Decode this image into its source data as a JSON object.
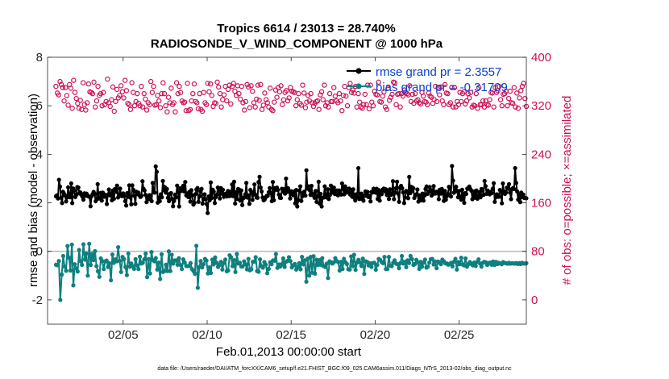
{
  "chart_data": {
    "type": "line",
    "title": "Tropics 6614 / 23013 = 28.740%",
    "subtitle": "RADIOSONDE_V_WIND_COMPONENT @ 1000 hPa",
    "xlabel": "Feb.01,2013 00:00:00 start",
    "ylabel_left": "rmse and bias (model - observation)",
    "ylabel_right": "# of obs: o=possible; ×=assimilated",
    "footnote": "data file: /Users/raeder/DAI/ATM_forcXX/CAM6_setup/f.e21.FHIST_BGC.f09_025.CAM6assim.011/Diags_NTrS_2013-02/obs_diag_output.nc",
    "xlim": [
      0.5,
      29.0
    ],
    "ylim_left": [
      -3,
      8
    ],
    "ylim_right": [
      -40,
      400
    ],
    "x_ticks": [
      5,
      10,
      15,
      20,
      25
    ],
    "x_tick_labels": [
      "02/05",
      "02/10",
      "02/15",
      "02/20",
      "02/25"
    ],
    "y_ticks_left": [
      -2,
      0,
      2,
      4,
      6,
      8
    ],
    "y_ticks_right": [
      0,
      80,
      160,
      240,
      320,
      400
    ],
    "colors": {
      "rmse": "#000000",
      "bias": "#0f7f7f",
      "count": "#cc1155",
      "legend_text": "#0a3fd0",
      "axis": "#262626",
      "zero_line": "#bdbdbd"
    },
    "legend": [
      {
        "label": "rmse grand pr = 2.3557",
        "series": "rmse"
      },
      {
        "label": "bias grand pr = -0.31709",
        "series": "bias"
      }
    ],
    "series": [
      {
        "name": "rmse",
        "axis": "left",
        "values": [
          2.27,
          2.31,
          2.18,
          2.95,
          2.67,
          2.21,
          1.99,
          2.45,
          2.37,
          2.3,
          2.06,
          2.22,
          2.64,
          2.35,
          2.23,
          2.8,
          1.99,
          2.59,
          2.51,
          2.24,
          2.33,
          2.65,
          2.63,
          2.39,
          2.43,
          2.33,
          2.26,
          2.13,
          2.39,
          2.29,
          2.38,
          2.31,
          2.26,
          2.25,
          1.86,
          2.27,
          2.36,
          2.45,
          2.37,
          2.07,
          2.15,
          2.77,
          2.18,
          2.18,
          2.41,
          2.09,
          2.42,
          2.25,
          2.34,
          2.29,
          1.95,
          2.33,
          2.55,
          2.31,
          2.39,
          2.11,
          2.51,
          2.17,
          2.57,
          2.46,
          2.71,
          2.22,
          2.32,
          2.59,
          2.29,
          2.28,
          2.39,
          2.28,
          2.07,
          1.89,
          2.4,
          2.25,
          2.72,
          2.22,
          1.94,
          2.72,
          2.54,
          2.29,
          1.96,
          2.46,
          2.36,
          2.42,
          2.31,
          2.24,
          2.29,
          2.89,
          2.58,
          2.51,
          2.33,
          2.03,
          2.23,
          2.16,
          2.32,
          2.28,
          2.07,
          2.82,
          2.46,
          2.42,
          3.5,
          3.28,
          2.01,
          2.22,
          2.07,
          2.35,
          2.23,
          2.9,
          2.52,
          2.64,
          2.42,
          2.57,
          2.21,
          2.07,
          2.37,
          2.4,
          2.17,
          1.86,
          2.08,
          2.33,
          2.22,
          2.71,
          2.44,
          1.85,
          2.6,
          2.49,
          2.58,
          2.7,
          2.47,
          2.86,
          2.31,
          2.38,
          2.24,
          2.45,
          2.05,
          2.52,
          2.3,
          1.93,
          2.0,
          2.36,
          2.55,
          2.61,
          2.04,
          2.27,
          2.49,
          2.57,
          1.97,
          2.15,
          2.35,
          2.15,
          1.95,
          1.58,
          2.26,
          2.11,
          2.84,
          2.2,
          2.54,
          2.46,
          1.99,
          2.24,
          2.33,
          2.63,
          2.51,
          2.18,
          2.61,
          2.38,
          2.54,
          2.25,
          2.36,
          2.38,
          2.27,
          2.49,
          2.28,
          2.45,
          2.29,
          2.76,
          2.28,
          2.87,
          1.97,
          2.44,
          2.16,
          2.57,
          2.54,
          2.09,
          2.51,
          1.91,
          2.19,
          2.23,
          2.35,
          2.82,
          2.22,
          2.3,
          1.96,
          2.53,
          2.45,
          2.12,
          2.38,
          2.76,
          2.33,
          2.22,
          2.21,
          2.86,
          3.07,
          2.63,
          2.47,
          2.22,
          2.11,
          2.14,
          2.23,
          2.29,
          2.29,
          2.44,
          2.61,
          2.4,
          2.07,
          2.86,
          2.11,
          2.6,
          2.54,
          2.63,
          2.53,
          2.34,
          2.21,
          2.2,
          2.58,
          2.47,
          2.56,
          2.38,
          3.0,
          2.45,
          2.6,
          2.49,
          2.18,
          2.48,
          2.44,
          2.32,
          2.47,
          1.98,
          2.53,
          1.85,
          2.11,
          2.51,
          2.68,
          2.08,
          2.27,
          2.42,
          2.46,
          2.3,
          3.34,
          2.59,
          2.68,
          2.53,
          2.33,
          2.7,
          2.32,
          2.36,
          2.21,
          2.49,
          2.04,
          2.27,
          2.87,
          1.97,
          2.37,
          1.85,
          2.21,
          2.22,
          2.68,
          2.35,
          2.22,
          2.56,
          2.16,
          2.32,
          2.71,
          2.52,
          2.42,
          2.63,
          2.36,
          2.49,
          2.51,
          2.31,
          2.51,
          2.44,
          2.34,
          2.8,
          2.58,
          2.35,
          2.68,
          2.43,
          2.43,
          2.57,
          2.59,
          2.34,
          2.52,
          2.25,
          2.56,
          2.21,
          2.1,
          2.35,
          2.23,
          3.43,
          2.16,
          2.17,
          2.38,
          2.22,
          2.09,
          2.3,
          2.47,
          2.29,
          2.45,
          2.24,
          2.29,
          2.06,
          2.45,
          2.43,
          2.58,
          2.46,
          2.42,
          2.58,
          2.16,
          2.53,
          2.09,
          2.46,
          2.36,
          2.55,
          2.59,
          2.48,
          2.56,
          2.33,
          2.44,
          2.16,
          2.56,
          2.33,
          2.39,
          2.89,
          2.15,
          2.43,
          2.6,
          2.87,
          2.38,
          2.04,
          2.63,
          2.7,
          2.6,
          2.43,
          1.99,
          2.22,
          2.49,
          2.47,
          2.19,
          3.07,
          2.4,
          2.66,
          2.5,
          2.6,
          2.2,
          2.31,
          2.35,
          2.55,
          2.05,
          2.31,
          2.1,
          2.16,
          2.38,
          2.09,
          2.3,
          2.57,
          2.67,
          2.37,
          2.45,
          2.65,
          2.53,
          2.3,
          2.52,
          2.69,
          2.38,
          2.39,
          2.46,
          2.41,
          2.15,
          2.54,
          2.38,
          2.57,
          2.4,
          2.08,
          2.49,
          2.13,
          2.28,
          2.37,
          2.66,
          2.61,
          2.26,
          3.52,
          2.92,
          2.42,
          2.51,
          2.66,
          2.49,
          2.23,
          2.49,
          2.25,
          2.13,
          2.54,
          2.27,
          2.0,
          2.4,
          2.37,
          2.59,
          2.58,
          2.67,
          2.57,
          2.5,
          2.15,
          2.34,
          2.47,
          2.21,
          2.51,
          2.17,
          2.29,
          2.44,
          2.23,
          2.57,
          2.52,
          2.33,
          2.9,
          2.69,
          2.37,
          2.51,
          2.43,
          2.35,
          2.45,
          2.4,
          2.58,
          2.81,
          2.04,
          2.23,
          2.35,
          2.26,
          2.25,
          2.53,
          2.47,
          1.98,
          2.8,
          2.48,
          2.37,
          2.42,
          2.63,
          2.58,
          2.77,
          2.42,
          2.15,
          2.57,
          2.61,
          2.57,
          3.43,
          2.82,
          2.47,
          2.13,
          2.33,
          2.03,
          2.42,
          2.24,
          2.34,
          2.2,
          2.2,
          2.19
        ]
      },
      {
        "name": "bias",
        "axis": "left",
        "values": [
          -0.55,
          -0.57,
          -0.4,
          -2.0,
          -0.96,
          -0.19,
          -0.63,
          -0.8,
          0.22,
          -0.26,
          -0.79,
          0.28,
          -1.4,
          -0.53,
          -0.7,
          -0.83,
          0.06,
          -0.41,
          -0.56,
          0.29,
          -0.34,
          -0.09,
          -1.0,
          0.31,
          -0.56,
          -0.11,
          -0.36,
          0.01,
          -0.61,
          -0.82,
          -1.05,
          -0.29,
          -0.4,
          -0.73,
          -0.41,
          -0.38,
          -0.64,
          -0.49,
          -1.19,
          -0.13,
          -0.47,
          -0.33,
          -0.41,
          0.17,
          -0.38,
          -0.85,
          -0.23,
          -0.32,
          -0.64,
          -0.98,
          -0.09,
          -0.63,
          -0.5,
          -0.61,
          -0.72,
          -0.32,
          -0.58,
          -0.73,
          -0.22,
          -0.5,
          -0.47,
          -0.33,
          -0.09,
          -1.06,
          -0.32,
          -0.91,
          -0.03,
          -0.36,
          -0.41,
          -0.28,
          -0.75,
          -0.46,
          -1.14,
          -0.12,
          -0.85,
          -0.81,
          -0.55,
          -0.81,
          0.0,
          -0.81,
          -0.14,
          -0.5,
          -0.38,
          -0.37,
          -0.55,
          -0.28,
          -0.56,
          -0.73,
          -0.33,
          -0.46,
          -0.6,
          -0.61,
          -0.6,
          -0.48,
          -0.73,
          -0.81,
          -0.92,
          0.23,
          -1.5,
          -0.65,
          -0.4,
          -0.66,
          -0.53,
          -0.31,
          -0.38,
          -0.91,
          -0.66,
          -0.89,
          -0.34,
          -0.53,
          -0.25,
          -0.47,
          -0.64,
          -0.56,
          -0.43,
          -0.75,
          -0.48,
          -0.34,
          -0.82,
          -0.79,
          -0.16,
          -0.24,
          -0.61,
          -0.36,
          -0.85,
          -0.11,
          -0.5,
          -0.47,
          -0.62,
          -0.62,
          -0.41,
          -0.53,
          -0.74,
          -0.31,
          -0.78,
          -0.74,
          -0.43,
          -0.42,
          -0.24,
          -0.81,
          -0.84,
          -0.33,
          -0.61,
          -0.67,
          -0.44,
          -0.55,
          -0.9,
          -0.72,
          -0.45,
          -0.53,
          -0.37,
          -0.39,
          -0.11,
          -0.68,
          -0.54,
          -0.62,
          -0.53,
          -0.29,
          -0.64,
          -0.43,
          -0.39,
          -0.24,
          -0.4,
          -0.66,
          -0.57,
          -0.52,
          -0.75,
          -0.64,
          -0.49,
          -0.74,
          -0.23,
          -0.53,
          -0.37,
          -1.25,
          -0.3,
          -1.0,
          -0.23,
          -0.88,
          -0.2,
          -0.92,
          -0.34,
          -0.56,
          -0.36,
          -0.55,
          -0.28,
          -0.61,
          -0.64,
          -0.51,
          -1.1,
          -0.41,
          -0.45,
          -0.5,
          -0.45,
          -0.28,
          -0.4,
          -0.44,
          -0.79,
          -0.43,
          -0.73,
          -0.31,
          -0.45,
          -0.52,
          -0.74,
          -0.75,
          -0.21,
          -0.61,
          -0.14,
          -0.76,
          -0.46,
          -0.35,
          -0.45,
          -0.6,
          -0.3,
          -0.93,
          -0.41,
          -0.43,
          -0.58,
          -0.49,
          -0.64,
          -0.48,
          -0.47,
          -0.76,
          -0.56,
          -0.31,
          -0.35,
          -0.44,
          -0.49,
          -0.23,
          -0.73,
          -0.73,
          -0.23,
          -0.59,
          -0.61,
          -0.47,
          -0.37,
          -0.5,
          -0.53,
          -0.69,
          -0.48,
          -0.19,
          -0.5,
          -0.43,
          -0.65,
          -0.37,
          -0.48,
          -0.19,
          -0.32,
          -0.56,
          -0.52,
          -0.35,
          -0.45,
          -0.72,
          -0.43,
          -0.63,
          -0.46,
          -0.34,
          -0.67,
          -0.63,
          -0.46,
          -0.32,
          -0.31,
          -0.54,
          -0.42,
          -0.69,
          -0.42,
          -0.45,
          -0.53,
          -0.34,
          -0.41,
          -0.49,
          -0.5,
          -0.55,
          -0.52,
          -0.47,
          -0.62,
          -0.43,
          -0.31,
          -0.75,
          -0.44,
          -0.53,
          -0.26,
          -0.54,
          -0.58,
          -0.29,
          -0.63,
          -0.53,
          -0.44,
          -0.52,
          -0.58,
          -0.46,
          -0.6,
          -0.44,
          -0.33,
          -0.5,
          -0.63,
          -0.47,
          -0.43,
          -0.45,
          -0.56,
          -0.48,
          -0.46,
          -0.55,
          -0.42,
          -0.56,
          -0.43,
          -0.52,
          -0.47,
          -0.5,
          -0.53,
          -0.44,
          -0.48,
          -0.49,
          -0.51,
          -0.47,
          -0.51,
          -0.49,
          -0.5,
          -0.5,
          -0.48,
          -0.52,
          -0.48,
          -0.52,
          -0.47,
          -0.5,
          -0.5,
          -0.49
        ]
      },
      {
        "name": "obs_possible",
        "axis": "right",
        "values": [
          352,
          341,
          338,
          360,
          355,
          350,
          328,
          350,
          337,
          321,
          355,
          349,
          316,
          362,
          342,
          332,
          324,
          316,
          329,
          314,
          358,
          322,
          313,
          325,
          356,
          343,
          342,
          340,
          359,
          318,
          328,
          352,
          337,
          340,
          320,
          342,
          322,
          327,
          364,
          325,
          319,
          330,
          351,
          311,
          327,
          347,
          333,
          337,
          353,
          343,
          333,
          362,
          345,
          324,
          322,
          314,
          358,
          342,
          320,
          327,
          340,
          324,
          320,
          352,
          318,
          340,
          331,
          313,
          325,
          322,
          360,
          342,
          352,
          321,
          322,
          337,
          328,
          317,
          340,
          358,
          340,
          320,
          310,
          334,
          325,
          349,
          322,
          325,
          310,
          358,
          340,
          352,
          342,
          328,
          325,
          326,
          312,
          357,
          312,
          314,
          328,
          340,
          356,
          327,
          325,
          315,
          340,
          314,
          311,
          342,
          325,
          322,
          357,
          343,
          356,
          337,
          319,
          325,
          324,
          359,
          351,
          340,
          318,
          330,
          338,
          352,
          328,
          347,
          354,
          323,
          352,
          357,
          344,
          337,
          353,
          340,
          331,
          352,
          325,
          313,
          327,
          355,
          351,
          317,
          353,
          344,
          325,
          318,
          331,
          354,
          329,
          355,
          314,
          321,
          341,
          330,
          325,
          318,
          349,
          314,
          312,
          326,
          346,
          334,
          350,
          343,
          353,
          322,
          330,
          342,
          345,
          328,
          333,
          350,
          344,
          343,
          342,
          320,
          330,
          340,
          324,
          321,
          354,
          341,
          317,
          326,
          337,
          328,
          340,
          325,
          319,
          324,
          327,
          328,
          314,
          338,
          343,
          330,
          354,
          320,
          325,
          318,
          340,
          327,
          327,
          350,
          336,
          328,
          325,
          340,
          328,
          312,
          337,
          352,
          336,
          320,
          350,
          357,
          342,
          346,
          341,
          352,
          318,
          340,
          326,
          318,
          316,
          322,
          339,
          322,
          354,
          315,
          354,
          326,
          320,
          344,
          339,
          338,
          359,
          327,
          326,
          336,
          343,
          318,
          314,
          349,
          329,
          334,
          339,
          359,
          358,
          322,
          339,
          340,
          318,
          340,
          336,
          346,
          342,
          340,
          338,
          353,
          327,
          339,
          324,
          340,
          328,
          330,
          325,
          323,
          342,
          336,
          327,
          326,
          322,
          341,
          336,
          334,
          324,
          330,
          352,
          327,
          350,
          338,
          351,
          328,
          322,
          355,
          341,
          340,
          322,
          325,
          350,
          318,
          350,
          318,
          327,
          322,
          342,
          327,
          340,
          343,
          323,
          328,
          340,
          333,
          342,
          318,
          321,
          320,
          340,
          316,
          350,
          322,
          322,
          328,
          318,
          328,
          322,
          321,
          330,
          342,
          341,
          318,
          350,
          342,
          345,
          352,
          330,
          320,
          339,
          340,
          344,
          320,
          332,
          344,
          325,
          324,
          350,
          318,
          341,
          316,
          333,
          345,
          352,
          357,
          332,
          319
        ]
      }
    ]
  },
  "plot": {
    "title": "Tropics 6614 / 23013 = 28.740%",
    "subtitle": "RADIOSONDE_V_WIND_COMPONENT @ 1000 hPa"
  }
}
